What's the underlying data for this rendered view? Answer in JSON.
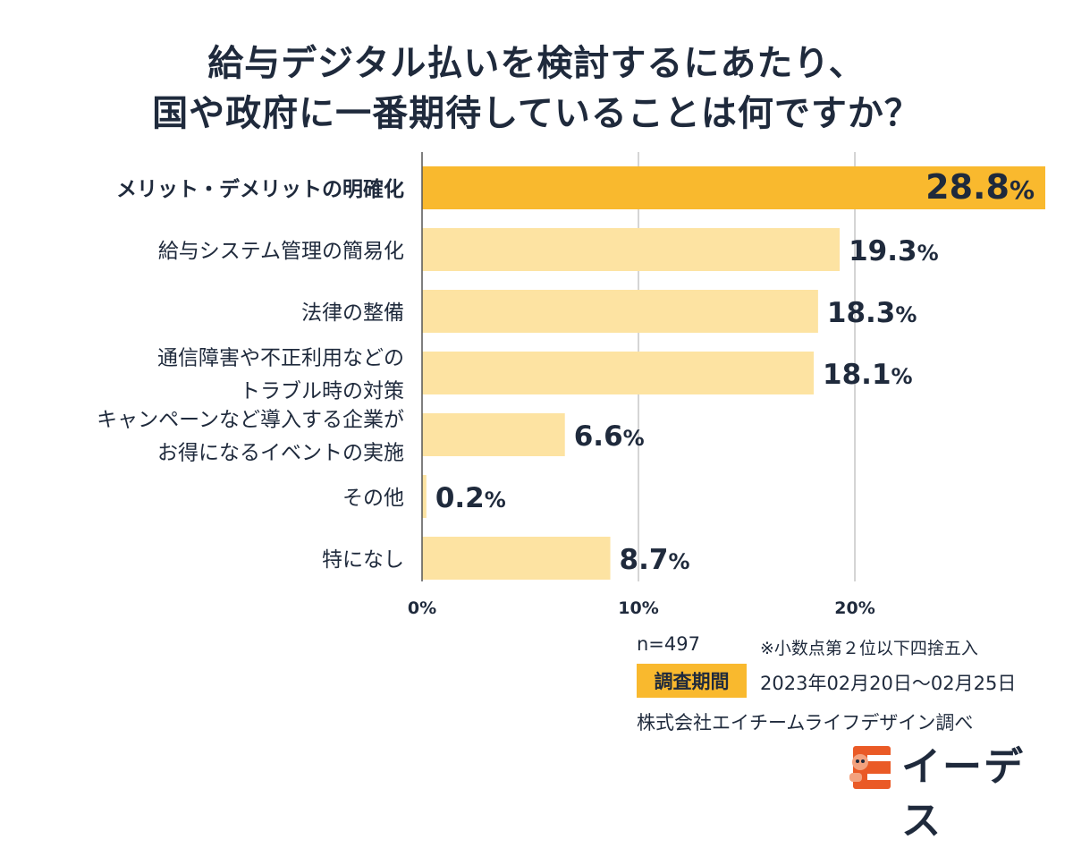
{
  "title": {
    "line1": "給与デジタル払いを検討するにあたり、",
    "line2": "国や政府に一番期待していることは何ですか？"
  },
  "chart_data": {
    "type": "bar",
    "orientation": "horizontal",
    "categories": [
      [
        "メリット・デメリットの明確化"
      ],
      [
        "給与システム管理の簡易化"
      ],
      [
        "法律の整備"
      ],
      [
        "通信障害や不正利用などの",
        "トラブル時の対策"
      ],
      [
        "キャンペーンなど導入する企業が",
        "お得になるイベントの実施"
      ],
      [
        "その他"
      ],
      [
        "特になし"
      ]
    ],
    "values": [
      28.8,
      19.3,
      18.3,
      18.1,
      6.6,
      0.2,
      8.7
    ],
    "value_labels": [
      "28.8",
      "19.3",
      "18.3",
      "18.1",
      "6.6",
      "0.2",
      "8.7"
    ],
    "unit": "%",
    "highlight_index": 0,
    "xlim": [
      0,
      28.8
    ],
    "xticks": [
      0,
      10,
      20
    ],
    "xtick_labels": [
      "0%",
      "10%",
      "20%"
    ],
    "grid": true,
    "colors": {
      "highlight": "#f9b92e",
      "bar": "#fde3a2",
      "grid": "#aaaaaa",
      "text": "#1f2a3c"
    }
  },
  "footer": {
    "n": "n=497",
    "note": "※小数点第２位以下四捨五入",
    "period_label": "調査期間",
    "period": "2023年02月20日～02月25日",
    "source": "株式会社エイチームライフデザイン調べ"
  },
  "logo": {
    "text": "イーデス",
    "mark_icon": "mascot-e-icon",
    "mark_color": "#ea5a26"
  }
}
